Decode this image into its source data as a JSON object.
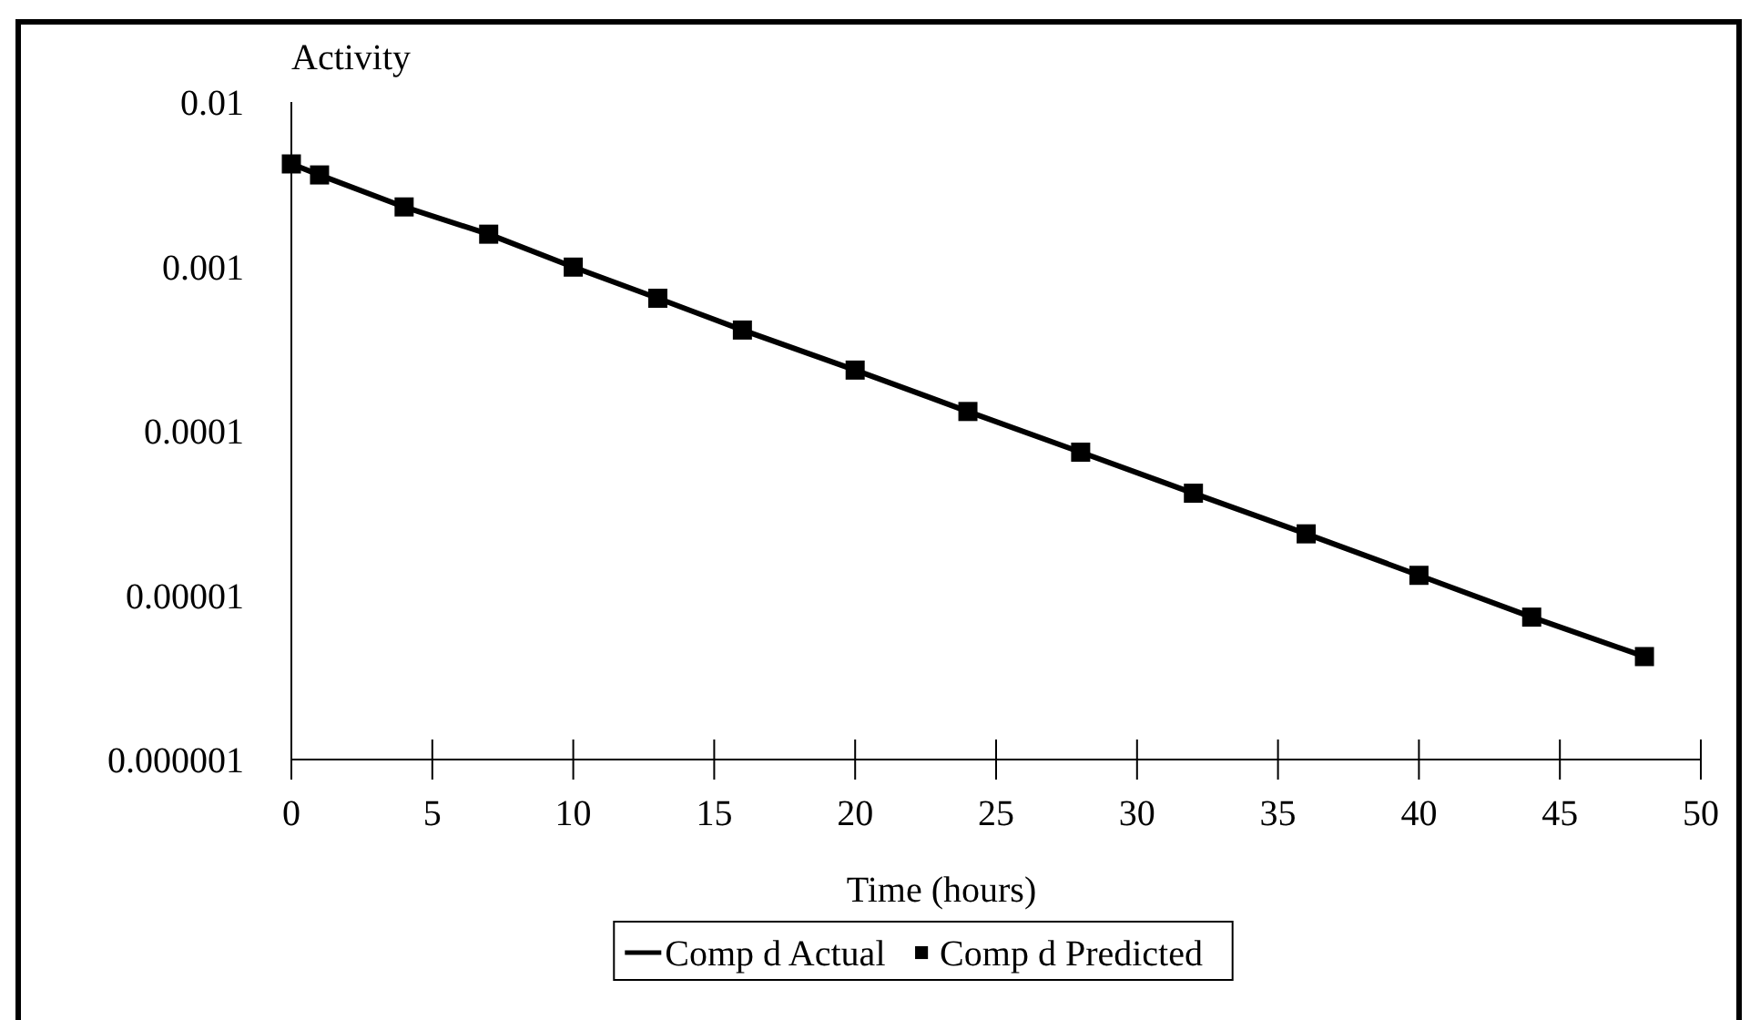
{
  "chart_data": {
    "type": "line",
    "xlabel": "Time (hours)",
    "ylabel": "Activity",
    "log": "y",
    "xlim": [
      0,
      50
    ],
    "xticks": [
      0,
      5,
      10,
      15,
      20,
      25,
      30,
      35,
      40,
      45,
      50
    ],
    "ylim": [
      1e-06,
      0.01
    ],
    "yticks": [
      {
        "value": 1e-06,
        "label": "0.000001"
      },
      {
        "value": 1e-05,
        "label": "0.00001"
      },
      0.0001,
      0.001,
      0.01
    ],
    "grid": false,
    "legend": "bottom",
    "x": [
      0,
      1,
      4,
      7,
      10,
      13,
      16,
      20,
      24,
      28,
      32,
      36,
      40,
      44,
      48
    ],
    "series": [
      {
        "name": "Comp d Actual",
        "type": "line",
        "marker": "none",
        "line_style": "solid",
        "color": "#000000",
        "values": [
          0.0042,
          0.0036,
          0.0023,
          0.00157,
          0.00099,
          0.00064,
          0.00041,
          0.000234,
          0.000131,
          7.41e-05,
          4.17e-05,
          2.36e-05,
          1.32e-05,
          7.35e-06,
          4.23e-06
        ]
      },
      {
        "name": "Comp d Predicted",
        "type": "scatter",
        "marker": "square",
        "color": "#000000",
        "values": [
          0.0042,
          0.0036,
          0.0023,
          0.00157,
          0.00099,
          0.00064,
          0.00041,
          0.000234,
          0.000131,
          7.41e-05,
          4.17e-05,
          2.36e-05,
          1.32e-05,
          7.35e-06,
          4.23e-06
        ]
      }
    ]
  }
}
